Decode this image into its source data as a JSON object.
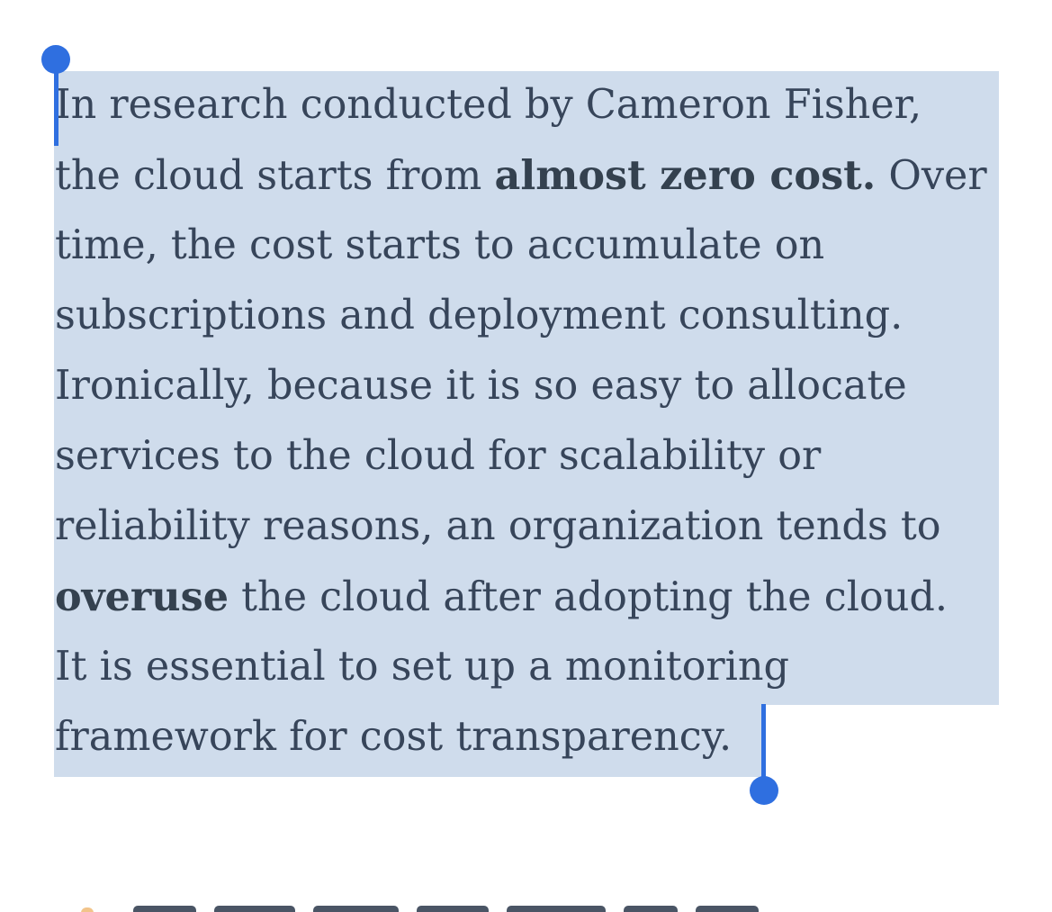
{
  "article": {
    "paragraph_lines": [
      [
        {
          "text": "In research conducted by Cameron Fisher,",
          "bold": false
        }
      ],
      [
        {
          "text": "the cloud starts from ",
          "bold": false
        },
        {
          "text": "almost zero cost.",
          "bold": true
        },
        {
          "text": " Over",
          "bold": false
        }
      ],
      [
        {
          "text": "time, the cost starts to accumulate on",
          "bold": false
        }
      ],
      [
        {
          "text": "subscriptions and deployment consulting.",
          "bold": false
        }
      ],
      [
        {
          "text": "Ironically, because it is so easy to allocate",
          "bold": false
        }
      ],
      [
        {
          "text": "services to the cloud for scalability or",
          "bold": false
        }
      ],
      [
        {
          "text": "reliability reasons, an organization tends to",
          "bold": false
        }
      ],
      [
        {
          "text": "overuse",
          "bold": true
        },
        {
          "text": " the cloud after adopting the cloud.",
          "bold": false
        }
      ],
      [
        {
          "text": "It is essential to set up a monitoring",
          "bold": false
        }
      ],
      [
        {
          "text": "framework for cost transparency.",
          "bold": false
        }
      ]
    ]
  },
  "colors": {
    "text": "#37455a",
    "selection": "#cfdcec",
    "handle": "#2f6fe0",
    "background": "#ffffff"
  },
  "icons": {
    "start_handle": "selection-start-handle-icon",
    "end_handle": "selection-end-handle-icon"
  }
}
